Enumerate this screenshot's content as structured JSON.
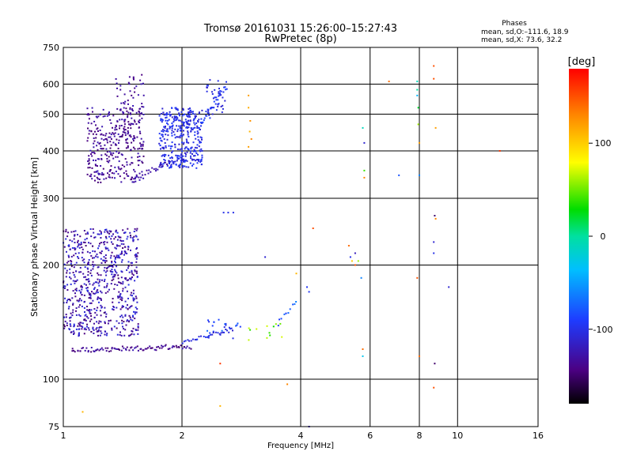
{
  "header": {
    "title_line1": "Tromsø 20161031 15:26:00–15:27:43",
    "title_line2": "RwPretec (8p)",
    "stats_title": "Phases",
    "stats_o": "mean, sd,O:–111.6, 18.9",
    "stats_x": "mean, sd,X:  73.6, 32.2"
  },
  "colorbar": {
    "label": "[deg]",
    "ticks": [
      {
        "value": 100,
        "label": "100"
      },
      {
        "value": 0,
        "label": "0"
      },
      {
        "value": -100,
        "label": "-100"
      }
    ],
    "range": [
      -180,
      180
    ]
  },
  "chart_data": {
    "type": "scatter",
    "title": "Tromsø 20161031 15:26:00–15:27:43",
    "subtitle": "RwPretec (8p)",
    "xlabel": "Frequency [MHz]",
    "ylabel": "Stationary phase Virtual Height [km]",
    "xscale": "log",
    "yscale": "log",
    "xlim": [
      1,
      16
    ],
    "ylim": [
      75,
      750
    ],
    "xticks": [
      {
        "value": 1,
        "label": "1"
      },
      {
        "value": 2,
        "label": "2"
      },
      {
        "value": 4,
        "label": "4"
      },
      {
        "value": 6,
        "label": "6"
      },
      {
        "value": 8,
        "label": "8"
      },
      {
        "value": 10,
        "label": "10"
      },
      {
        "value": 16,
        "label": "16"
      }
    ],
    "yticks": [
      {
        "value": 75,
        "label": "75"
      },
      {
        "value": 100,
        "label": "100"
      },
      {
        "value": 200,
        "label": "200"
      },
      {
        "value": 300,
        "label": "300"
      },
      {
        "value": 400,
        "label": "400"
      },
      {
        "value": 500,
        "label": "500"
      },
      {
        "value": 600,
        "label": "600"
      },
      {
        "value": 750,
        "label": "750"
      }
    ],
    "grid": true,
    "color_dimension": "phase [deg]",
    "clusters": [
      {
        "f": [
          1.0,
          1.55
        ],
        "h": [
          130,
          250
        ],
        "phase": [
          -150,
          -100
        ],
        "n": 700
      },
      {
        "f": [
          1.15,
          1.6
        ],
        "h": [
          330,
          520
        ],
        "phase": [
          -150,
          -120
        ],
        "n": 320
      },
      {
        "f": [
          1.35,
          1.6
        ],
        "h": [
          400,
          640
        ],
        "phase": [
          -145,
          -120
        ],
        "n": 60
      },
      {
        "f": [
          1.75,
          2.25
        ],
        "h": [
          360,
          520
        ],
        "phase": [
          -115,
          -90
        ],
        "n": 380
      },
      {
        "f": [
          2.3,
          2.6
        ],
        "h": [
          480,
          620
        ],
        "phase": [
          -115,
          -90
        ],
        "n": 40
      },
      {
        "f": [
          2.3,
          2.85
        ],
        "h": [
          128,
          145
        ],
        "phase": [
          -105,
          -70
        ],
        "n": 25
      },
      {
        "f": [
          2.9,
          3.6
        ],
        "h": [
          125,
          140
        ],
        "phase": [
          30,
          80
        ],
        "n": 12
      }
    ],
    "traces": [
      {
        "f0": 1.05,
        "f1": 2.1,
        "h0": 119,
        "h1": 122,
        "phase": [
          -150,
          -120
        ],
        "n": 90
      },
      {
        "f0": 1.5,
        "f1": 1.85,
        "h0": 340,
        "h1": 372,
        "phase": [
          -140,
          -120
        ],
        "n": 25
      },
      {
        "f0": 2.0,
        "f1": 2.7,
        "h0": 124,
        "h1": 136,
        "phase": [
          -115,
          -90
        ],
        "n": 30
      },
      {
        "f0": 2.2,
        "f1": 2.6,
        "h0": 460,
        "h1": 600,
        "phase": [
          -105,
          -85
        ],
        "n": 30
      },
      {
        "f0": 3.5,
        "f1": 3.9,
        "h0": 140,
        "h1": 160,
        "phase": [
          -100,
          -60
        ],
        "n": 10
      }
    ],
    "points": [
      {
        "f": 2.55,
        "h": 275,
        "phase": -100
      },
      {
        "f": 2.62,
        "h": 275,
        "phase": -100
      },
      {
        "f": 2.7,
        "h": 275,
        "phase": -100
      },
      {
        "f": 2.95,
        "h": 560,
        "phase": 120
      },
      {
        "f": 2.95,
        "h": 520,
        "phase": 115
      },
      {
        "f": 2.98,
        "h": 480,
        "phase": 125
      },
      {
        "f": 2.97,
        "h": 450,
        "phase": 110
      },
      {
        "f": 3.0,
        "h": 430,
        "phase": 130
      },
      {
        "f": 2.95,
        "h": 410,
        "phase": 120
      },
      {
        "f": 3.25,
        "h": 210,
        "phase": -110
      },
      {
        "f": 3.9,
        "h": 190,
        "phase": 110
      },
      {
        "f": 4.15,
        "h": 175,
        "phase": -95
      },
      {
        "f": 4.2,
        "h": 170,
        "phase": -95
      },
      {
        "f": 4.3,
        "h": 250,
        "phase": 150
      },
      {
        "f": 3.7,
        "h": 97,
        "phase": 130
      },
      {
        "f": 4.2,
        "h": 75,
        "phase": -120
      },
      {
        "f": 2.5,
        "h": 110,
        "phase": 160
      },
      {
        "f": 2.5,
        "h": 85,
        "phase": 110
      },
      {
        "f": 1.12,
        "h": 82,
        "phase": 110
      },
      {
        "f": 5.3,
        "h": 225,
        "phase": 140
      },
      {
        "f": 5.35,
        "h": 210,
        "phase": -100
      },
      {
        "f": 5.4,
        "h": 205,
        "phase": 100
      },
      {
        "f": 5.5,
        "h": 200,
        "phase": 150
      },
      {
        "f": 5.5,
        "h": 215,
        "phase": -120
      },
      {
        "f": 5.6,
        "h": 205,
        "phase": 60
      },
      {
        "f": 5.7,
        "h": 185,
        "phase": -60
      },
      {
        "f": 5.75,
        "h": 460,
        "phase": -10
      },
      {
        "f": 5.8,
        "h": 420,
        "phase": -110
      },
      {
        "f": 5.8,
        "h": 355,
        "phase": 40
      },
      {
        "f": 5.8,
        "h": 340,
        "phase": 130
      },
      {
        "f": 5.75,
        "h": 115,
        "phase": -30
      },
      {
        "f": 5.75,
        "h": 120,
        "phase": 140
      },
      {
        "f": 6.7,
        "h": 610,
        "phase": 140
      },
      {
        "f": 7.1,
        "h": 345,
        "phase": -80
      },
      {
        "f": 7.9,
        "h": 610,
        "phase": -10
      },
      {
        "f": 7.9,
        "h": 580,
        "phase": 0
      },
      {
        "f": 7.9,
        "h": 560,
        "phase": -40
      },
      {
        "f": 7.95,
        "h": 520,
        "phase": 20
      },
      {
        "f": 7.95,
        "h": 470,
        "phase": 60
      },
      {
        "f": 8.0,
        "h": 420,
        "phase": 120
      },
      {
        "f": 8.0,
        "h": 345,
        "phase": -60
      },
      {
        "f": 7.9,
        "h": 185,
        "phase": 150
      },
      {
        "f": 8.0,
        "h": 115,
        "phase": 140
      },
      {
        "f": 8.7,
        "h": 670,
        "phase": 150
      },
      {
        "f": 8.7,
        "h": 620,
        "phase": 150
      },
      {
        "f": 8.8,
        "h": 460,
        "phase": 120
      },
      {
        "f": 8.75,
        "h": 270,
        "phase": -150
      },
      {
        "f": 8.8,
        "h": 265,
        "phase": 130
      },
      {
        "f": 8.7,
        "h": 230,
        "phase": -110
      },
      {
        "f": 8.7,
        "h": 215,
        "phase": -100
      },
      {
        "f": 8.75,
        "h": 110,
        "phase": -150
      },
      {
        "f": 8.7,
        "h": 95,
        "phase": 150
      },
      {
        "f": 9.5,
        "h": 175,
        "phase": -110
      },
      {
        "f": 12.8,
        "h": 400,
        "phase": 160
      }
    ]
  }
}
